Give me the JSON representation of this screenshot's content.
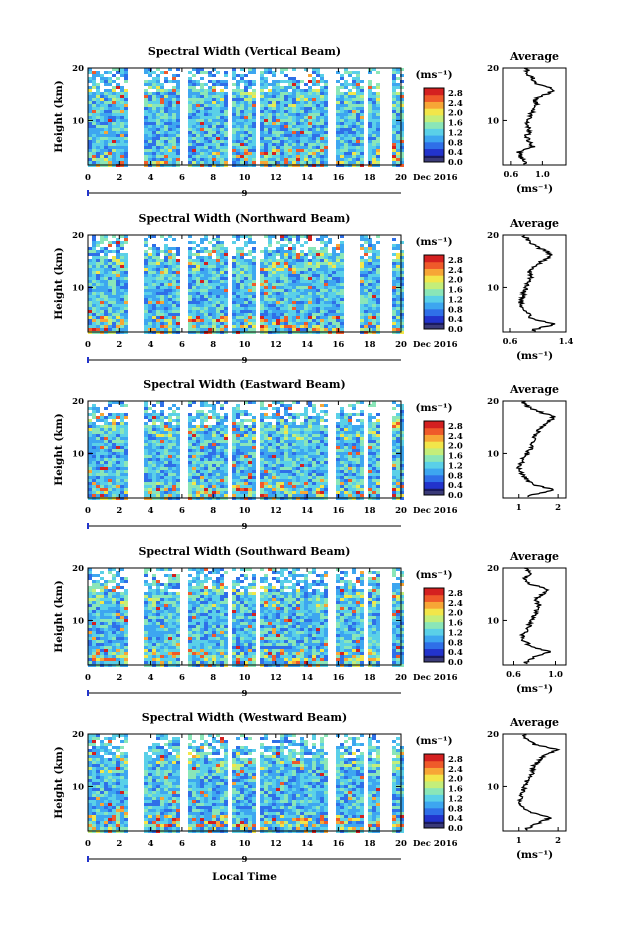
{
  "figure": {
    "xlabel": "Local Time",
    "date_label": "Dec 2016",
    "day_mark": "9",
    "avg_title": "Average",
    "unit": "(ms⁻¹)"
  },
  "colors": {
    "scale": [
      "#1a1a5e",
      "#2233cc",
      "#2f6fe8",
      "#3da6f0",
      "#5ad0e8",
      "#8ae6b8",
      "#c4ee7a",
      "#f2e64a",
      "#f7a636",
      "#ef5a2a",
      "#d42020"
    ],
    "bar_below": "#3a3a78"
  },
  "chart_data": [
    {
      "type": "heatmap",
      "title": "Spectral Width (Vertical Beam)",
      "ylabel": "Height (km)",
      "xlabel": "",
      "x_ticks": [
        "0",
        "2",
        "4",
        "6",
        "8",
        "10",
        "12",
        "14",
        "16",
        "18",
        "20"
      ],
      "y_ticks": [
        "20",
        "10"
      ],
      "xlim": [
        0,
        20
      ],
      "ylim": [
        1.5,
        20
      ],
      "gaps_hours": [
        [
          2.5,
          3.4
        ],
        [
          5.7,
          6.2
        ],
        [
          8.8,
          9.2
        ],
        [
          10.5,
          10.9
        ],
        [
          15.3,
          15.6
        ],
        [
          17.4,
          17.7
        ],
        [
          18.6,
          19.4
        ]
      ],
      "colorbar": {
        "unit": "(ms⁻¹)",
        "ticks": [
          "2.8",
          "2.4",
          "2.0",
          "1.6",
          "1.2",
          "0.8",
          "0.4",
          "0.0"
        ],
        "range": [
          0,
          3.0
        ]
      },
      "average": {
        "xlabel": "(ms⁻¹)",
        "x_ticks": [
          "0.6",
          "1.0"
        ],
        "xlim": [
          0.5,
          1.3
        ],
        "profile_height_km": [
          2,
          3,
          4,
          5,
          6,
          7,
          8,
          9,
          10,
          11,
          12,
          13,
          14,
          15,
          16,
          17,
          18,
          19,
          20
        ],
        "profile_value": [
          0.78,
          0.72,
          0.7,
          0.88,
          0.82,
          0.8,
          0.84,
          0.8,
          0.82,
          0.85,
          0.88,
          0.92,
          0.9,
          1.05,
          1.15,
          0.92,
          0.88,
          0.8,
          0.82
        ]
      }
    },
    {
      "type": "heatmap",
      "title": "Spectral Width (Northward Beam)",
      "ylabel": "Height (km)",
      "xlabel": "",
      "x_ticks": [
        "0",
        "2",
        "4",
        "6",
        "8",
        "10",
        "12",
        "14",
        "16",
        "18",
        "20"
      ],
      "y_ticks": [
        "20",
        "10"
      ],
      "xlim": [
        0,
        20
      ],
      "ylim": [
        1.5,
        20
      ],
      "gaps_hours": [
        [
          2.5,
          3.4
        ],
        [
          5.7,
          6.2
        ],
        [
          8.8,
          9.2
        ],
        [
          10.5,
          10.9
        ],
        [
          16.3,
          17.2
        ],
        [
          18.6,
          19.4
        ]
      ],
      "colorbar": {
        "unit": "(ms⁻¹)",
        "ticks": [
          "2.8",
          "2.4",
          "2.0",
          "1.6",
          "1.2",
          "0.8",
          "0.4",
          "0.0"
        ],
        "range": [
          0,
          3.0
        ]
      },
      "average": {
        "xlabel": "(ms⁻¹)",
        "x_ticks": [
          "0.6",
          "1.4"
        ],
        "xlim": [
          0.5,
          1.4
        ],
        "profile_height_km": [
          2,
          3,
          4,
          5,
          6,
          7,
          8,
          9,
          10,
          11,
          12,
          13,
          14,
          15,
          16,
          17,
          18,
          19,
          20
        ],
        "profile_value": [
          0.95,
          1.25,
          0.9,
          0.85,
          0.8,
          0.75,
          0.78,
          0.8,
          0.82,
          0.85,
          0.9,
          0.88,
          0.95,
          1.05,
          1.2,
          1.1,
          0.95,
          0.85,
          0.8
        ]
      }
    },
    {
      "type": "heatmap",
      "title": "Spectral Width (Eastward Beam)",
      "ylabel": "Height (km)",
      "xlabel": "",
      "x_ticks": [
        "0",
        "2",
        "4",
        "6",
        "8",
        "10",
        "12",
        "14",
        "16",
        "18",
        "20"
      ],
      "y_ticks": [
        "20",
        "10"
      ],
      "xlim": [
        0,
        20
      ],
      "ylim": [
        1.5,
        20
      ],
      "gaps_hours": [
        [
          2.5,
          3.4
        ],
        [
          5.7,
          6.2
        ],
        [
          8.8,
          9.2
        ],
        [
          10.5,
          10.9
        ],
        [
          15.3,
          15.6
        ],
        [
          17.4,
          17.7
        ],
        [
          18.6,
          19.4
        ]
      ],
      "colorbar": {
        "unit": "(ms⁻¹)",
        "ticks": [
          "2.8",
          "2.4",
          "2.0",
          "1.6",
          "1.2",
          "0.8",
          "0.4",
          "0.0"
        ],
        "range": [
          0,
          3.0
        ]
      },
      "average": {
        "xlabel": "",
        "x_ticks": [
          "1",
          "2"
        ],
        "xlim": [
          0.6,
          2.2
        ],
        "profile_height_km": [
          2,
          3,
          4,
          5,
          6,
          7,
          8,
          9,
          10,
          11,
          12,
          13,
          14,
          15,
          16,
          17,
          18,
          19,
          20
        ],
        "profile_value": [
          1.3,
          1.9,
          1.4,
          1.2,
          1.1,
          1.0,
          1.05,
          1.1,
          1.2,
          1.3,
          1.35,
          1.4,
          1.45,
          1.6,
          1.75,
          1.9,
          1.5,
          1.2,
          1.1
        ]
      }
    },
    {
      "type": "heatmap",
      "title": "Spectral Width (Southward Beam)",
      "ylabel": "Height (km)",
      "xlabel": "",
      "x_ticks": [
        "0",
        "2",
        "4",
        "6",
        "8",
        "10",
        "12",
        "14",
        "16",
        "18",
        "20"
      ],
      "y_ticks": [
        "20",
        "10"
      ],
      "xlim": [
        0,
        20
      ],
      "ylim": [
        1.5,
        20
      ],
      "gaps_hours": [
        [
          2.5,
          3.4
        ],
        [
          5.7,
          6.2
        ],
        [
          8.8,
          9.2
        ],
        [
          10.5,
          10.9
        ],
        [
          15.3,
          15.6
        ],
        [
          17.4,
          17.7
        ],
        [
          18.6,
          19.4
        ]
      ],
      "colorbar": {
        "unit": "(ms⁻¹)",
        "ticks": [
          "2.8",
          "2.4",
          "2.0",
          "1.6",
          "1.2",
          "0.8",
          "0.4",
          "0.0"
        ],
        "range": [
          0,
          3.0
        ]
      },
      "average": {
        "xlabel": "(ms⁻¹)",
        "x_ticks": [
          "0.6",
          "1.0"
        ],
        "xlim": [
          0.5,
          1.1
        ],
        "profile_height_km": [
          2,
          3,
          4,
          5,
          6,
          7,
          8,
          9,
          10,
          11,
          12,
          13,
          14,
          15,
          16,
          17,
          18,
          19,
          20
        ],
        "profile_value": [
          0.72,
          0.8,
          0.95,
          0.78,
          0.7,
          0.68,
          0.72,
          0.75,
          0.78,
          0.8,
          0.82,
          0.85,
          0.8,
          0.88,
          0.92,
          0.75,
          0.7,
          0.78,
          0.72
        ]
      }
    },
    {
      "type": "heatmap",
      "title": "Spectral Width (Westward Beam)",
      "ylabel": "Height (km)",
      "xlabel": "Local Time",
      "x_ticks": [
        "0",
        "2",
        "4",
        "6",
        "8",
        "10",
        "12",
        "14",
        "16",
        "18",
        "20"
      ],
      "y_ticks": [
        "20",
        "10"
      ],
      "xlim": [
        0,
        20
      ],
      "ylim": [
        1.5,
        20
      ],
      "gaps_hours": [
        [
          2.5,
          3.4
        ],
        [
          5.7,
          6.2
        ],
        [
          8.8,
          9.2
        ],
        [
          10.5,
          10.9
        ],
        [
          15.3,
          15.6
        ],
        [
          17.4,
          17.7
        ],
        [
          18.6,
          19.4
        ]
      ],
      "colorbar": {
        "unit": "(ms⁻¹)",
        "ticks": [
          "2.8",
          "2.4",
          "2.0",
          "1.6",
          "1.2",
          "0.8",
          "0.4",
          "0.0"
        ],
        "range": [
          0,
          3.0
        ]
      },
      "average": {
        "xlabel": "(ms⁻¹)",
        "x_ticks": [
          "1",
          "2"
        ],
        "xlim": [
          0.6,
          2.2
        ],
        "profile_height_km": [
          2,
          3,
          4,
          5,
          6,
          7,
          8,
          9,
          10,
          11,
          12,
          13,
          14,
          15,
          16,
          17,
          18,
          19,
          20
        ],
        "profile_value": [
          1.2,
          1.5,
          1.8,
          1.3,
          1.1,
          1.0,
          1.05,
          1.1,
          1.15,
          1.2,
          1.3,
          1.35,
          1.4,
          1.5,
          1.7,
          2.0,
          1.4,
          1.2,
          1.1
        ]
      }
    }
  ]
}
